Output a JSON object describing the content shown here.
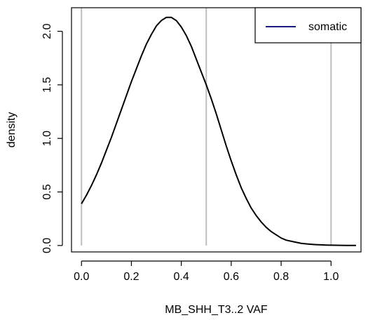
{
  "chart_data": {
    "type": "line",
    "title": "",
    "xlabel": "MB_SHH_T3..2  VAF",
    "ylabel": "density",
    "xlim": [
      -0.04,
      1.12
    ],
    "ylim": [
      -0.06,
      2.22
    ],
    "xticks": [
      0.0,
      0.2,
      0.4,
      0.6,
      0.8,
      1.0
    ],
    "xtick_labels": [
      "0.0",
      "0.2",
      "0.4",
      "0.6",
      "0.8",
      "1.0"
    ],
    "yticks": [
      0.0,
      0.5,
      1.0,
      1.5,
      2.0
    ],
    "ytick_labels": [
      "0.0",
      "0.5",
      "1.0",
      "1.5",
      "2.0"
    ],
    "reference_lines_x": [
      0.0,
      0.5,
      1.0
    ],
    "grid": false,
    "legend": {
      "position": "top-right",
      "entries": [
        "somatic"
      ]
    },
    "colors": {
      "curve": "#000000",
      "legend_line": "#1a1a80",
      "reference": "#bebebe",
      "axis": "#000000"
    },
    "series": [
      {
        "name": "somatic",
        "x": [
          0.0,
          0.02,
          0.04,
          0.06,
          0.08,
          0.1,
          0.12,
          0.14,
          0.16,
          0.18,
          0.2,
          0.22,
          0.24,
          0.26,
          0.28,
          0.3,
          0.32,
          0.34,
          0.36,
          0.38,
          0.4,
          0.42,
          0.44,
          0.46,
          0.48,
          0.5,
          0.52,
          0.54,
          0.56,
          0.58,
          0.6,
          0.62,
          0.64,
          0.66,
          0.68,
          0.7,
          0.72,
          0.74,
          0.76,
          0.78,
          0.8,
          0.82,
          0.84,
          0.86,
          0.88,
          0.9,
          0.92,
          0.94,
          0.96,
          0.98,
          1.0,
          1.02,
          1.04,
          1.06,
          1.08,
          1.1
        ],
        "y": [
          0.39,
          0.47,
          0.56,
          0.66,
          0.77,
          0.89,
          1.01,
          1.14,
          1.27,
          1.4,
          1.53,
          1.65,
          1.77,
          1.88,
          1.97,
          2.05,
          2.1,
          2.13,
          2.13,
          2.1,
          2.04,
          1.96,
          1.86,
          1.74,
          1.62,
          1.5,
          1.37,
          1.23,
          1.08,
          0.93,
          0.79,
          0.66,
          0.54,
          0.44,
          0.35,
          0.28,
          0.22,
          0.17,
          0.13,
          0.1,
          0.07,
          0.05,
          0.04,
          0.03,
          0.02,
          0.015,
          0.011,
          0.008,
          0.006,
          0.004,
          0.003,
          0.002,
          0.0015,
          0.001,
          0.0007,
          0.0005
        ]
      }
    ]
  }
}
